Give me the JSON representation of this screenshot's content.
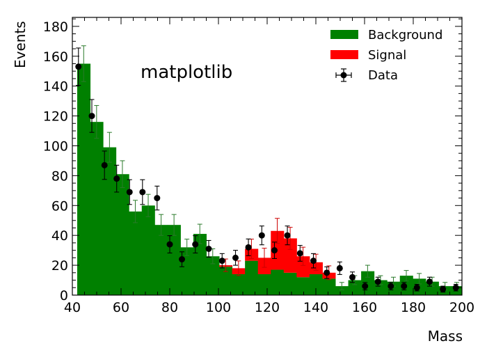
{
  "chart_data": {
    "type": "bar",
    "xlabel": "Mass",
    "ylabel": "Events",
    "annotation": "matplotlib",
    "xlim": [
      40,
      200
    ],
    "ylim": [
      0,
      186
    ],
    "xticks": [
      40,
      60,
      80,
      100,
      120,
      140,
      160,
      180,
      200
    ],
    "yticks": [
      0,
      20,
      40,
      60,
      80,
      100,
      120,
      140,
      160,
      180
    ],
    "legend_position": "top-right",
    "bin_edges": [
      42.0,
      47.3,
      52.6,
      57.9,
      63.2,
      68.5,
      73.8,
      79.1,
      84.4,
      89.7,
      95.0,
      100.3,
      105.6,
      110.9,
      116.2,
      121.5,
      126.8,
      132.1,
      137.4,
      142.7,
      148.0,
      153.3,
      158.6,
      163.9,
      169.2,
      174.5,
      179.8,
      185.1,
      190.4,
      195.7,
      200.0
    ],
    "series": [
      {
        "name": "Background",
        "color": "#008000",
        "values": [
          155,
          116,
          99,
          81,
          56,
          60,
          47,
          47,
          32,
          41,
          26,
          19,
          14,
          23,
          14,
          17,
          15,
          12,
          14,
          11,
          6,
          10,
          16,
          10,
          9,
          13,
          11,
          9,
          6,
          6
        ],
        "errors": [
          12,
          11,
          10,
          9,
          7.5,
          7.5,
          7,
          7,
          5.5,
          6.5,
          5,
          4.5,
          4,
          5,
          4,
          4,
          4,
          3.5,
          4,
          3.5,
          2.5,
          3,
          4,
          3,
          3,
          3.5,
          3.5,
          3,
          2.5,
          2.5
        ]
      },
      {
        "name": "Signal",
        "color": "#ff0000",
        "values": [
          0,
          0,
          0,
          0,
          0,
          0,
          0,
          0,
          0,
          0,
          0,
          1,
          4,
          8,
          11,
          26,
          23,
          14,
          8,
          4,
          0,
          0,
          0,
          0,
          0,
          0,
          0,
          0,
          0,
          0
        ],
        "errors": [
          0,
          0,
          0,
          0,
          0,
          0,
          0,
          0,
          0,
          0,
          0,
          1.5,
          2.5,
          3.5,
          4,
          6,
          5,
          4,
          3,
          2.5,
          0,
          0,
          0,
          0,
          0,
          0,
          0,
          0,
          0,
          0
        ]
      },
      {
        "name": "Data",
        "color": "#000000",
        "x": [
          42.5,
          48,
          53.2,
          58.2,
          63.5,
          68.8,
          74.8,
          80,
          85,
          90.5,
          96,
          101.5,
          107,
          112.3,
          117.8,
          123,
          128.3,
          133.5,
          139,
          144.5,
          149.8,
          155,
          160.2,
          165.5,
          170.8,
          176.2,
          181.5,
          186.7,
          192.2,
          197.5
        ],
        "y": [
          153,
          120,
          87,
          78,
          69,
          69,
          65,
          34,
          24,
          34,
          31,
          23,
          25,
          32,
          40,
          30,
          40,
          28,
          23,
          15,
          18,
          12,
          6,
          9,
          6,
          6,
          5,
          9,
          4,
          5
        ],
        "errors": [
          12.5,
          11,
          9.5,
          9,
          8.3,
          8.3,
          8,
          5.8,
          5,
          5.8,
          5.6,
          4.8,
          5,
          5.6,
          6.3,
          5.5,
          6.3,
          5.3,
          4.8,
          3.9,
          4.2,
          3.5,
          2.5,
          3,
          2.5,
          2.5,
          2.2,
          3,
          2,
          2.2
        ]
      }
    ]
  }
}
